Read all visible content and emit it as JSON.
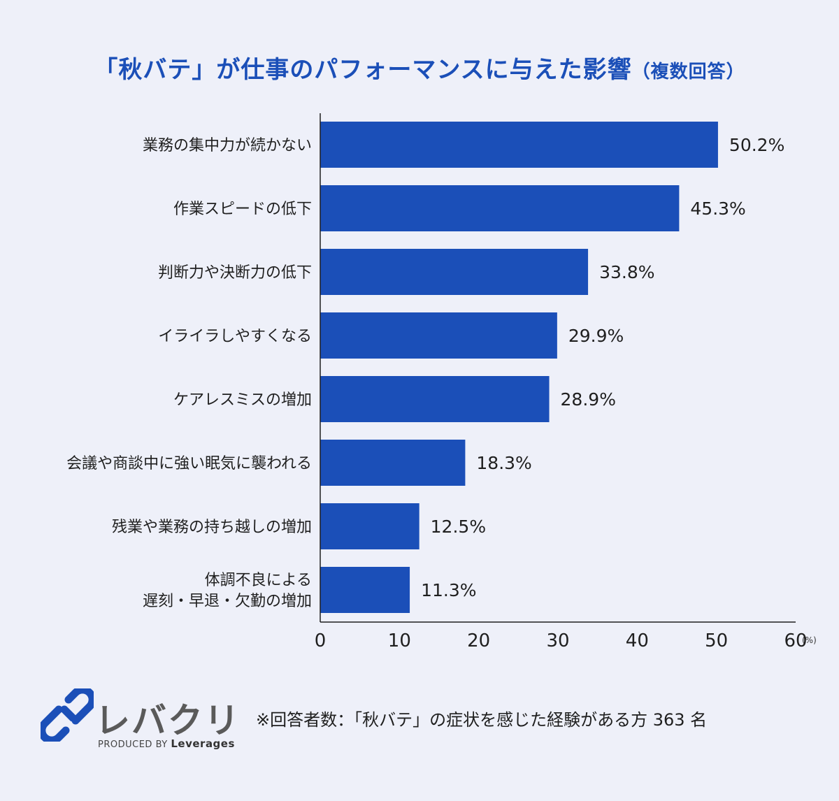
{
  "chart_data": {
    "type": "bar",
    "orientation": "horizontal",
    "title": "「秋バテ」が仕事のパフォーマンスに与えた影響",
    "title_suffix": "（複数回答）",
    "categories": [
      [
        "業務の集中力が続かない"
      ],
      [
        "作業スピードの低下"
      ],
      [
        "判断力や決断力の低下"
      ],
      [
        "イライラしやすくなる"
      ],
      [
        "ケアレスミスの増加"
      ],
      [
        "会議や商談中に強い眠気に襲われる"
      ],
      [
        "残業や業務の持ち越しの増加"
      ],
      [
        "体調不良による",
        "遅刻・早退・欠勤の増加"
      ]
    ],
    "values": [
      50.2,
      45.3,
      33.8,
      29.9,
      28.9,
      18.3,
      12.5,
      11.3
    ],
    "value_labels": [
      "50.2%",
      "45.3%",
      "33.8%",
      "29.9%",
      "28.9%",
      "18.3%",
      "12.5%",
      "11.3%"
    ],
    "xlim": [
      0,
      60
    ],
    "xticks": [
      "0",
      "10",
      "20",
      "30",
      "40",
      "50",
      "60"
    ],
    "x_unit": "(%)",
    "bar_color": "#1b4fb8",
    "grid": false,
    "legend": "none"
  },
  "footnote": "※回答者数：「秋バテ」の症状を感じた経験がある方 363 名",
  "logo": {
    "wordmark": "レバクリ",
    "produced_by": "PRODUCED BY",
    "company": "Leverages",
    "icon": "link-chain-icon",
    "color": "#1b4fb8"
  }
}
